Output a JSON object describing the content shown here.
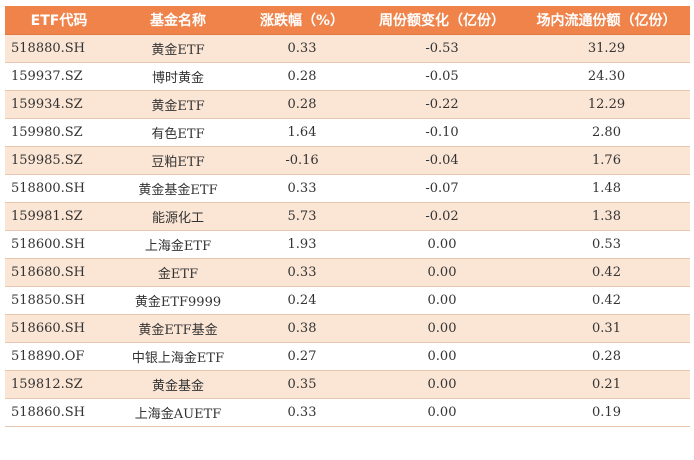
{
  "table": {
    "headers": [
      "ETF代码",
      "基金名称",
      "涨跌幅（%）",
      "周份额变化（亿份）",
      "场内流通份额（亿份）"
    ],
    "rows": [
      [
        "518880.SH",
        "黄金ETF",
        "0.33",
        "-0.53",
        "31.29"
      ],
      [
        "159937.SZ",
        "博时黄金",
        "0.28",
        "-0.05",
        "24.30"
      ],
      [
        "159934.SZ",
        "黄金ETF",
        "0.28",
        "-0.22",
        "12.29"
      ],
      [
        "159980.SZ",
        "有色ETF",
        "1.64",
        "-0.10",
        "2.80"
      ],
      [
        "159985.SZ",
        "豆粕ETF",
        "-0.16",
        "-0.04",
        "1.76"
      ],
      [
        "518800.SH",
        "黄金基金ETF",
        "0.33",
        "-0.07",
        "1.48"
      ],
      [
        "159981.SZ",
        "能源化工",
        "5.73",
        "-0.02",
        "1.38"
      ],
      [
        "518600.SH",
        "上海金ETF",
        "1.93",
        "0.00",
        "0.53"
      ],
      [
        "518680.SH",
        "金ETF",
        "0.33",
        "0.00",
        "0.42"
      ],
      [
        "518850.SH",
        "黄金ETF9999",
        "0.24",
        "0.00",
        "0.42"
      ],
      [
        "518660.SH",
        "黄金ETF基金",
        "0.38",
        "0.00",
        "0.31"
      ],
      [
        "518890.OF",
        "中银上海金ETF",
        "0.27",
        "0.00",
        "0.28"
      ],
      [
        "159812.SZ",
        "黄金基金",
        "0.35",
        "0.00",
        "0.21"
      ],
      [
        "518860.SH",
        "上海金AUETF",
        "0.33",
        "0.00",
        "0.19"
      ]
    ]
  },
  "colors": {
    "header_bg": "#ef834a",
    "odd_row_bg": "#fbe6d6",
    "even_row_bg": "#ffffff"
  }
}
